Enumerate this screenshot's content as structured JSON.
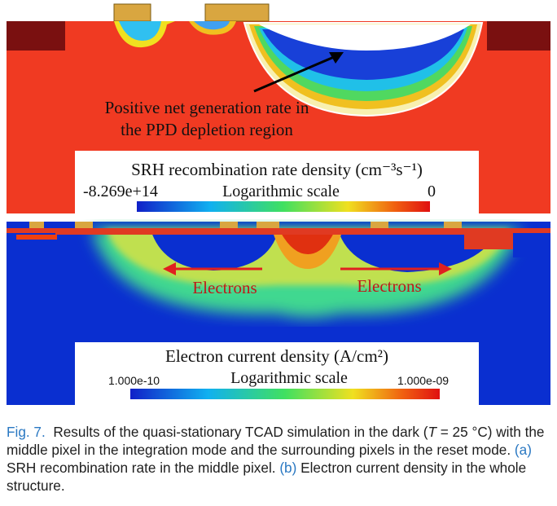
{
  "panel_a": {
    "annotation": [
      "Positive net generation rate in",
      "the PPD depletion region"
    ],
    "legend": {
      "title": "SRH recombination rate density (cm⁻³s⁻¹)",
      "min": "-8.269e+14",
      "scale": "Logarithmic scale",
      "max": "0"
    }
  },
  "panel_b": {
    "annotations": [
      "Electrons",
      "Electrons"
    ],
    "legend": {
      "title": "Electron current density (A/cm²)",
      "min": "1.000e-10",
      "scale": "Logarithmic scale",
      "max": "1.000e-09"
    }
  },
  "caption": {
    "label": "Fig. 7.",
    "text_1": "Results of the quasi-stationary TCAD simulation in the dark (",
    "variable": "T",
    "text_2": " = 25 °C) with the middle pixel in the integration mode and the surrounding pixels in the reset mode.",
    "panel_a_ref": "(a)",
    "panel_a_text": "SRH recombination rate in the middle pixel.",
    "panel_b_ref": "(b)",
    "panel_b_text": "Electron current density in the whole structure."
  }
}
